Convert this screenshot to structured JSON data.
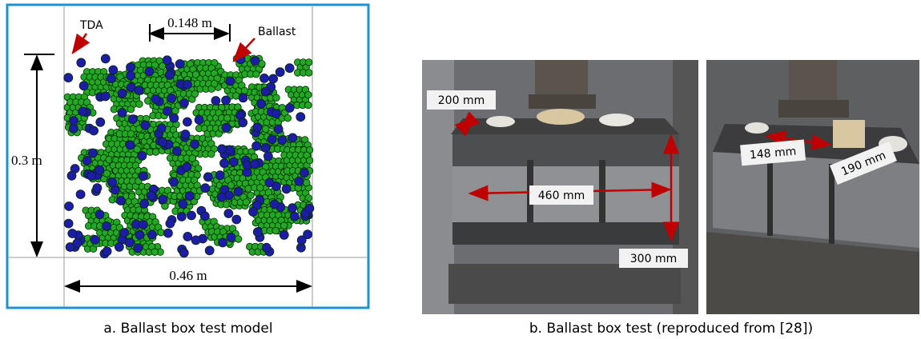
{
  "panel_a": {
    "labels": {
      "tda": "TDA",
      "ballast": "Ballast",
      "top_width": "0.148 m",
      "height": "0.3 m",
      "width": "0.46 m"
    },
    "caption": "a. Ballast box test model"
  },
  "panel_b": {
    "photo_1": {
      "labels": [
        "200 mm",
        "460 mm",
        "300 mm"
      ]
    },
    "photo_2": {
      "labels": [
        "148 mm",
        "190 mm"
      ]
    },
    "caption": "b. Ballast box test (reproduced from [28])"
  }
}
